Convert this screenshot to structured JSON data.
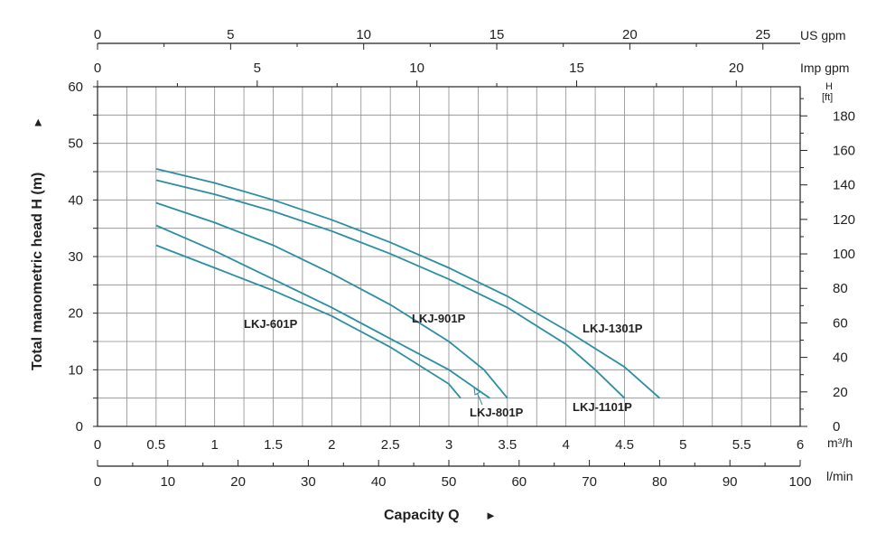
{
  "chart_data": {
    "type": "line",
    "xlabel": "Capacity Q",
    "xlabel_arrow": "►",
    "ylabel": "Total manometric head H (m)",
    "ylabel_arrow": "►",
    "xlim": [
      0,
      6
    ],
    "ylim": [
      0,
      60
    ],
    "grid": true,
    "x_ticks": [
      "0",
      "0.5",
      "1",
      "1.5",
      "2",
      "2.5",
      "3",
      "3.5",
      "4",
      "4.5",
      "5",
      "5.5",
      "6"
    ],
    "x_unit": "m³/h",
    "y_ticks": [
      "0",
      "10",
      "20",
      "30",
      "40",
      "50",
      "60"
    ],
    "secondary_axes": {
      "lmin": {
        "unit": "l/min",
        "ticks": [
          "0",
          "10",
          "20",
          "30",
          "40",
          "50",
          "60",
          "70",
          "80",
          "90",
          "100"
        ],
        "range": [
          0,
          100
        ]
      },
      "us_gpm": {
        "unit": "US gpm",
        "ticks": [
          "0",
          "5",
          "10",
          "15",
          "20",
          "25"
        ],
        "range": [
          0,
          26.4
        ]
      },
      "imp_gpm": {
        "unit": "Imp gpm",
        "ticks": [
          "0",
          "5",
          "10",
          "15",
          "20"
        ],
        "range": [
          0,
          22
        ]
      },
      "ft": {
        "unit_top": "H",
        "unit_bottom": "[ft]",
        "ticks": [
          "0",
          "20",
          "40",
          "60",
          "80",
          "100",
          "120",
          "140",
          "160",
          "180"
        ],
        "range": [
          0,
          196.9
        ]
      }
    },
    "line_color": "#2b8fa3",
    "series": [
      {
        "name": "LKJ-601P",
        "x": [
          0.5,
          1.0,
          1.5,
          2.0,
          2.5,
          3.0,
          3.1
        ],
        "y": [
          32,
          28,
          24,
          19.5,
          14,
          7.5,
          5
        ]
      },
      {
        "name": "LKJ-801P",
        "x": [
          0.5,
          1.0,
          1.5,
          2.0,
          2.5,
          3.0,
          3.35
        ],
        "y": [
          35.5,
          31,
          26,
          21,
          15.5,
          10,
          5
        ]
      },
      {
        "name": "LKJ-901P",
        "x": [
          0.5,
          1.0,
          1.5,
          2.0,
          2.5,
          3.0,
          3.3,
          3.5
        ],
        "y": [
          39.5,
          36,
          32,
          27,
          21.5,
          15,
          10,
          5
        ]
      },
      {
        "name": "LKJ-1101P",
        "x": [
          0.5,
          1.0,
          1.5,
          2.0,
          2.5,
          3.0,
          3.5,
          4.0,
          4.25,
          4.5
        ],
        "y": [
          43.5,
          41,
          38,
          34.5,
          30.5,
          26,
          21,
          14.5,
          10,
          5
        ]
      },
      {
        "name": "LKJ-1301P",
        "x": [
          0.5,
          1.0,
          1.5,
          2.0,
          2.5,
          3.0,
          3.5,
          4.0,
          4.5,
          4.8
        ],
        "y": [
          45.5,
          43,
          40,
          36.5,
          32.5,
          28,
          23,
          17,
          10.5,
          5
        ]
      }
    ]
  }
}
